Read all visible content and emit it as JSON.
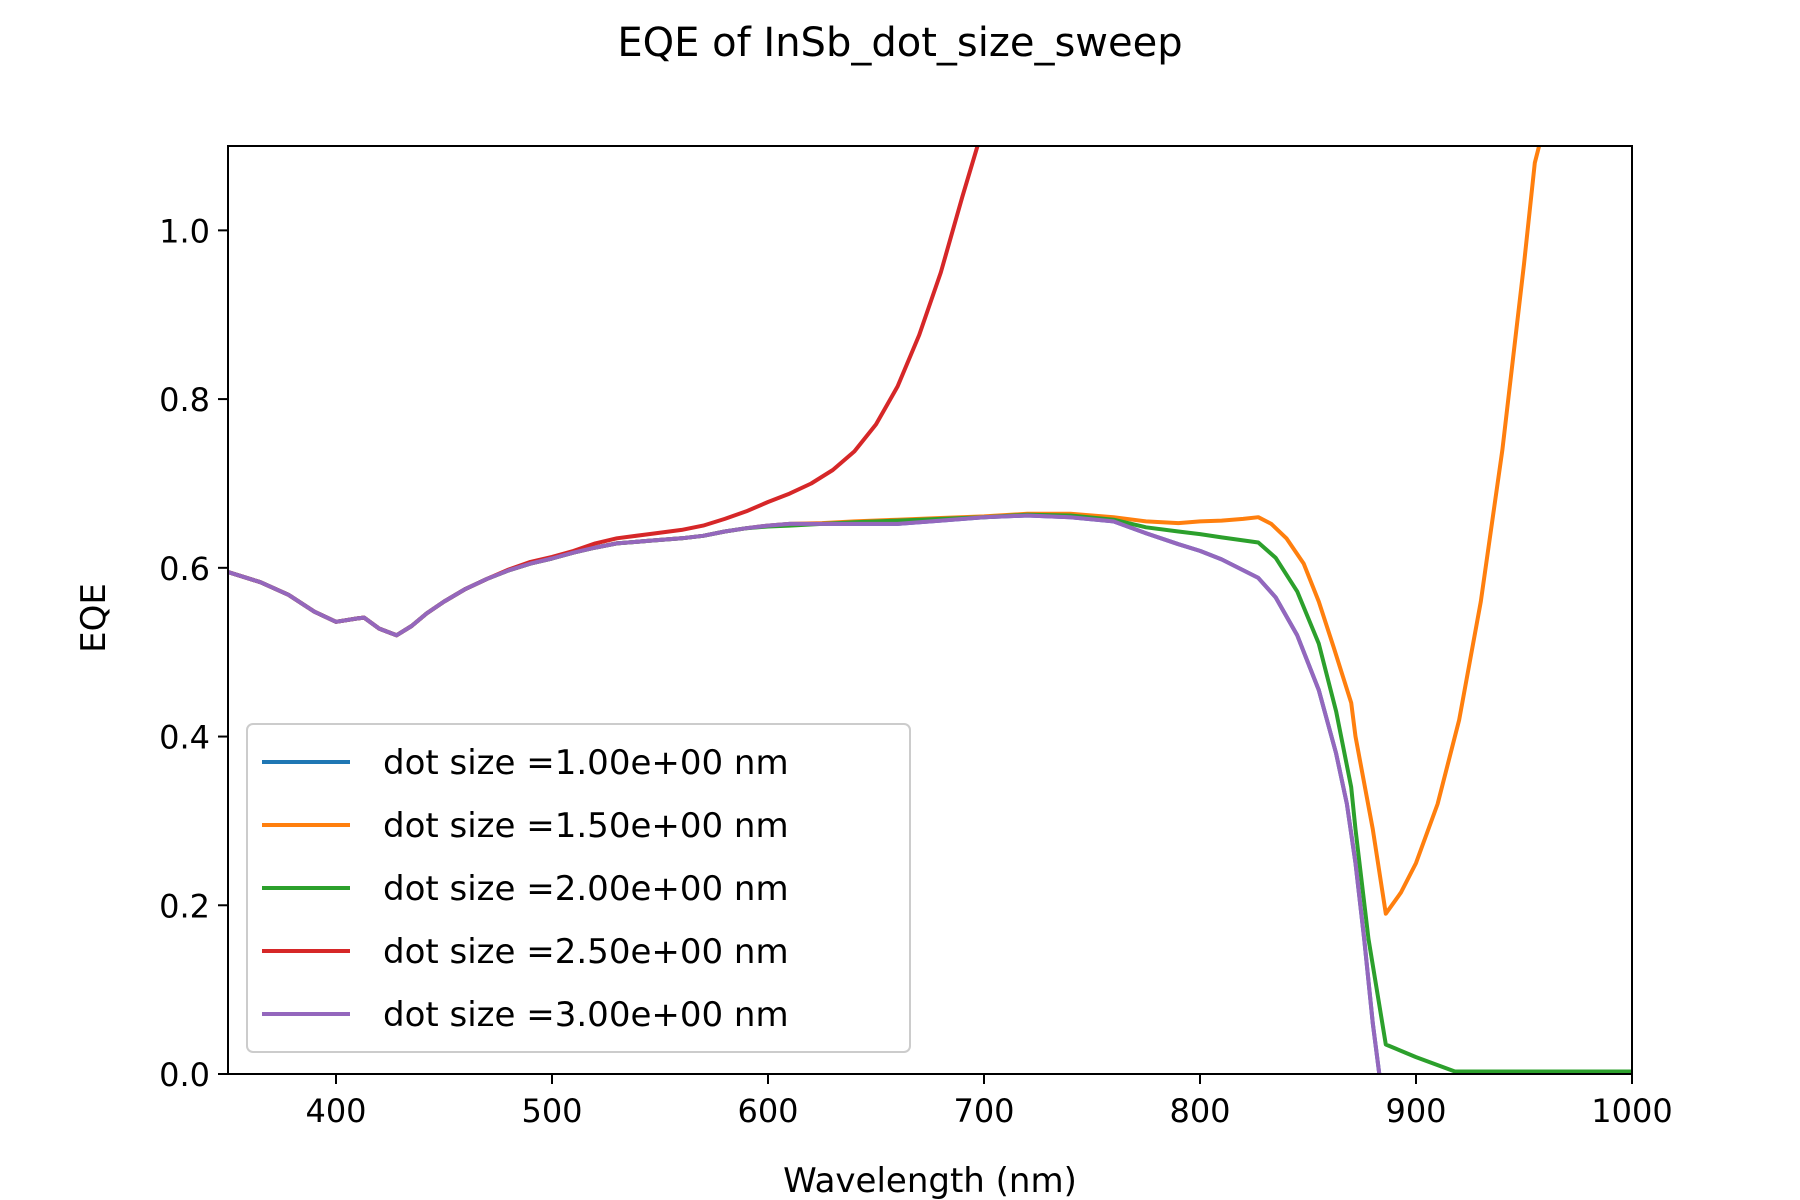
{
  "chart_data": {
    "type": "line",
    "title": "EQE of  InSb_dot_size_sweep",
    "xlabel": "Wavelength (nm)",
    "ylabel": "EQE",
    "xlim": [
      350,
      1000
    ],
    "ylim": [
      0.0,
      1.1
    ],
    "xticks": [
      400,
      500,
      600,
      700,
      800,
      900,
      1000
    ],
    "xtick_labels": [
      "400",
      "500",
      "600",
      "700",
      "800",
      "900",
      "1000"
    ],
    "yticks": [
      0.0,
      0.2,
      0.4,
      0.6,
      0.8,
      1.0
    ],
    "ytick_labels": [
      "0.0",
      "0.2",
      "0.4",
      "0.6",
      "0.8",
      "1.0"
    ],
    "grid": false,
    "legend_position": "lower-left",
    "series": [
      {
        "name": "dot size =1.00e+00 nm",
        "color": "#1f77b4",
        "x": [
          350,
          365,
          378,
          390,
          400,
          410,
          413,
          420,
          428,
          435,
          442,
          450,
          460,
          470,
          480,
          490,
          500,
          510,
          520,
          530,
          545,
          560,
          570,
          580,
          590,
          600,
          610,
          625,
          640,
          660,
          680,
          700,
          720,
          740,
          760,
          775,
          790,
          800,
          810,
          827,
          835,
          845,
          855,
          863,
          868,
          872,
          876,
          880,
          883
        ],
        "y": [
          0.595,
          0.583,
          0.568,
          0.548,
          0.536,
          0.54,
          0.541,
          0.528,
          0.52,
          0.531,
          0.546,
          0.56,
          0.575,
          0.587,
          0.597,
          0.605,
          0.611,
          0.618,
          0.624,
          0.629,
          0.632,
          0.635,
          0.638,
          0.643,
          0.647,
          0.65,
          0.652,
          0.652,
          0.652,
          0.652,
          0.656,
          0.66,
          0.662,
          0.66,
          0.655,
          0.641,
          0.628,
          0.62,
          0.61,
          0.588,
          0.565,
          0.52,
          0.455,
          0.38,
          0.32,
          0.25,
          0.16,
          0.06,
          0.0
        ]
      },
      {
        "name": "dot size =1.50e+00 nm",
        "color": "#ff7f0e",
        "x": [
          350,
          365,
          378,
          390,
          400,
          410,
          413,
          420,
          428,
          435,
          442,
          450,
          460,
          470,
          480,
          490,
          500,
          510,
          520,
          530,
          545,
          560,
          570,
          580,
          590,
          600,
          610,
          625,
          640,
          660,
          680,
          700,
          720,
          740,
          760,
          775,
          790,
          800,
          810,
          820,
          827,
          833,
          840,
          848,
          855,
          862,
          870,
          872,
          880,
          886,
          893,
          900,
          910,
          920,
          930,
          940,
          950,
          955,
          957
        ],
        "y": [
          0.595,
          0.583,
          0.568,
          0.548,
          0.536,
          0.54,
          0.541,
          0.528,
          0.52,
          0.531,
          0.546,
          0.56,
          0.575,
          0.587,
          0.597,
          0.605,
          0.611,
          0.618,
          0.624,
          0.629,
          0.632,
          0.635,
          0.638,
          0.643,
          0.647,
          0.65,
          0.652,
          0.653,
          0.655,
          0.657,
          0.659,
          0.661,
          0.664,
          0.664,
          0.66,
          0.655,
          0.653,
          0.655,
          0.656,
          0.658,
          0.66,
          0.652,
          0.635,
          0.605,
          0.56,
          0.505,
          0.44,
          0.4,
          0.29,
          0.19,
          0.215,
          0.25,
          0.32,
          0.42,
          0.56,
          0.74,
          0.96,
          1.08,
          1.1
        ]
      },
      {
        "name": "dot size =2.00e+00 nm",
        "color": "#2ca02c",
        "x": [
          350,
          365,
          378,
          390,
          400,
          410,
          413,
          420,
          428,
          435,
          442,
          450,
          460,
          470,
          480,
          490,
          500,
          510,
          520,
          530,
          545,
          560,
          570,
          580,
          590,
          600,
          610,
          625,
          640,
          660,
          680,
          700,
          720,
          740,
          760,
          775,
          790,
          800,
          810,
          827,
          835,
          845,
          855,
          863,
          870,
          872,
          878,
          886,
          900,
          918,
          940,
          960,
          1000
        ],
        "y": [
          0.595,
          0.583,
          0.568,
          0.548,
          0.536,
          0.54,
          0.541,
          0.528,
          0.52,
          0.531,
          0.546,
          0.56,
          0.575,
          0.587,
          0.597,
          0.605,
          0.611,
          0.618,
          0.624,
          0.629,
          0.632,
          0.635,
          0.638,
          0.643,
          0.647,
          0.649,
          0.65,
          0.652,
          0.654,
          0.656,
          0.658,
          0.66,
          0.663,
          0.662,
          0.657,
          0.648,
          0.643,
          0.64,
          0.636,
          0.63,
          0.612,
          0.572,
          0.51,
          0.43,
          0.34,
          0.29,
          0.16,
          0.035,
          0.02,
          0.003,
          0.003,
          0.003,
          0.003
        ]
      },
      {
        "name": "dot size =2.50e+00 nm",
        "color": "#d62728",
        "x": [
          350,
          365,
          378,
          390,
          400,
          410,
          413,
          420,
          428,
          435,
          442,
          450,
          460,
          470,
          480,
          490,
          500,
          510,
          520,
          530,
          545,
          560,
          570,
          580,
          590,
          600,
          610,
          620,
          630,
          640,
          650,
          660,
          670,
          680,
          690,
          697
        ],
        "y": [
          0.595,
          0.583,
          0.568,
          0.548,
          0.536,
          0.54,
          0.541,
          0.528,
          0.52,
          0.531,
          0.546,
          0.56,
          0.575,
          0.587,
          0.598,
          0.607,
          0.613,
          0.62,
          0.629,
          0.635,
          0.64,
          0.645,
          0.65,
          0.658,
          0.667,
          0.678,
          0.688,
          0.7,
          0.716,
          0.738,
          0.77,
          0.815,
          0.876,
          0.95,
          1.04,
          1.1
        ]
      },
      {
        "name": "dot size =3.00e+00 nm",
        "color": "#9467bd",
        "x": [
          350,
          365,
          378,
          390,
          400,
          410,
          413,
          420,
          428,
          435,
          442,
          450,
          460,
          470,
          480,
          490,
          500,
          510,
          520,
          530,
          545,
          560,
          570,
          580,
          590,
          600,
          610,
          625,
          640,
          660,
          680,
          700,
          720,
          740,
          760,
          775,
          790,
          800,
          810,
          827,
          835,
          845,
          855,
          863,
          868,
          872,
          876,
          880,
          883
        ],
        "y": [
          0.595,
          0.583,
          0.568,
          0.548,
          0.536,
          0.54,
          0.541,
          0.528,
          0.52,
          0.531,
          0.546,
          0.56,
          0.575,
          0.587,
          0.597,
          0.605,
          0.611,
          0.618,
          0.624,
          0.629,
          0.632,
          0.635,
          0.638,
          0.643,
          0.647,
          0.65,
          0.652,
          0.652,
          0.652,
          0.652,
          0.656,
          0.66,
          0.662,
          0.66,
          0.655,
          0.641,
          0.628,
          0.62,
          0.61,
          0.588,
          0.565,
          0.52,
          0.455,
          0.38,
          0.32,
          0.25,
          0.16,
          0.06,
          0.0
        ]
      }
    ]
  }
}
